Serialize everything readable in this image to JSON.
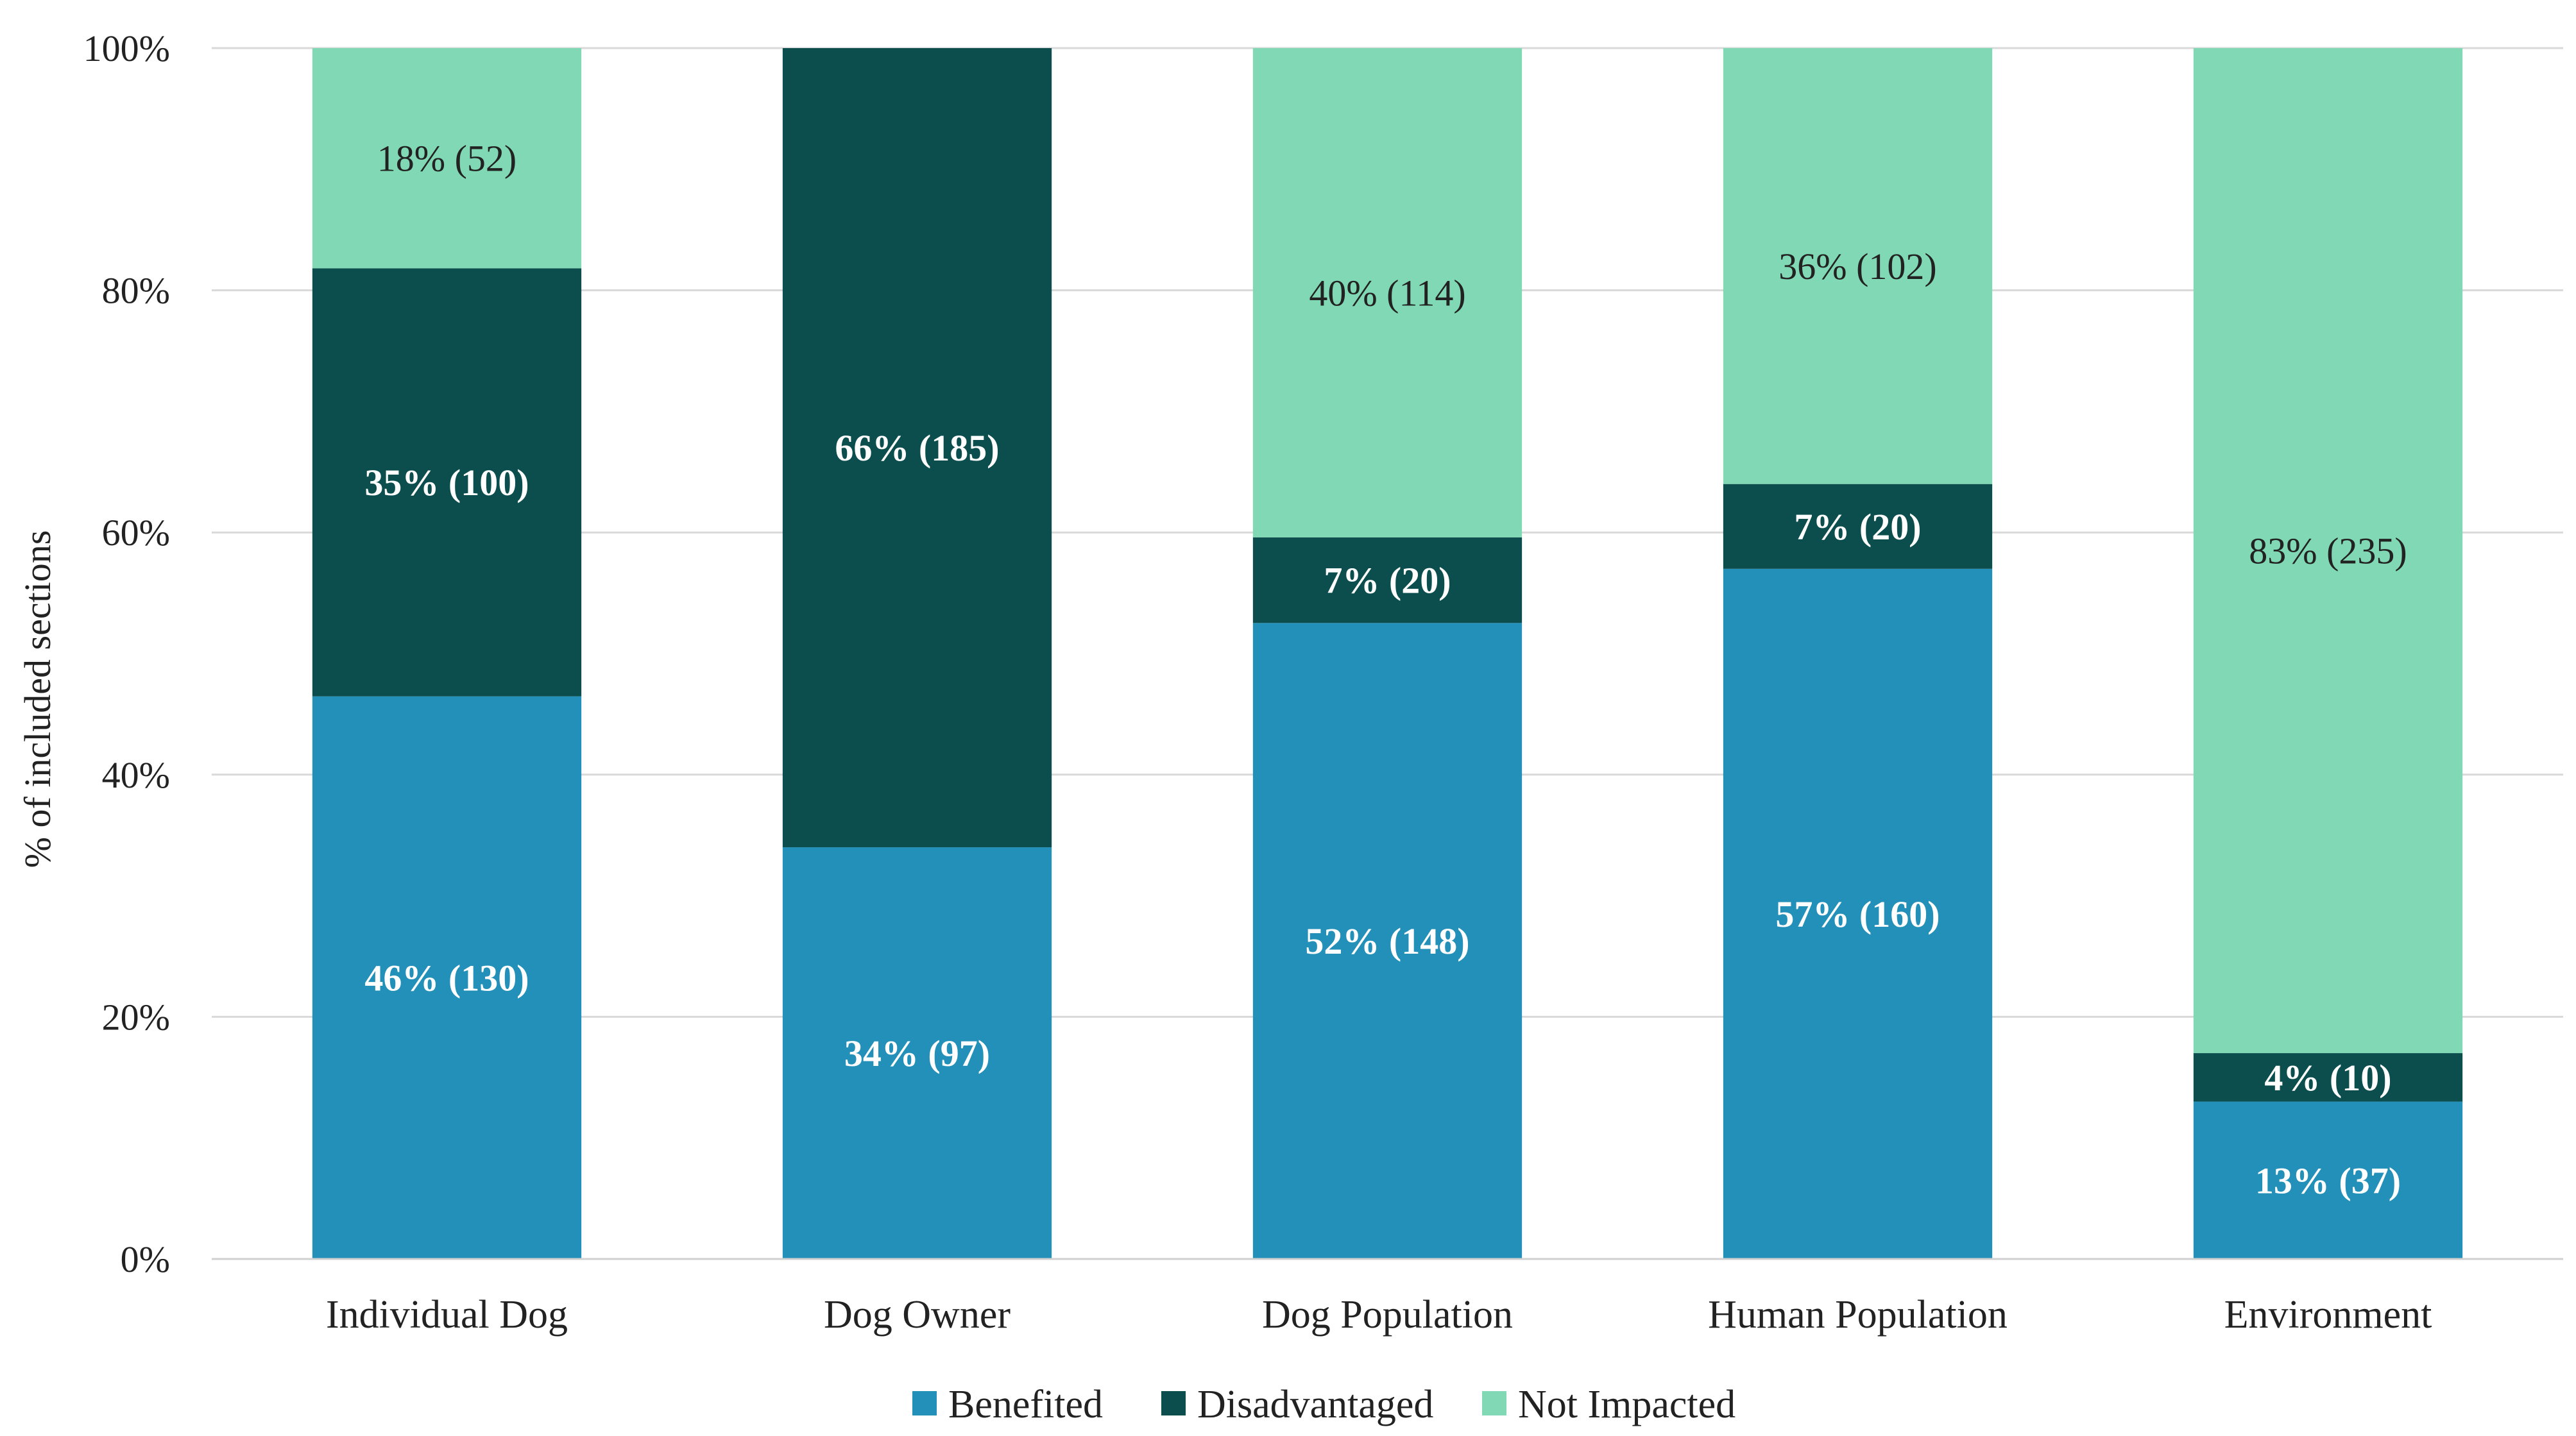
{
  "chart_data": {
    "type": "bar",
    "stacked": true,
    "title": "",
    "xlabel": "",
    "ylabel": "% of included sections",
    "ylim": [
      0,
      100
    ],
    "yticks": [
      "0%",
      "20%",
      "40%",
      "60%",
      "80%",
      "100%"
    ],
    "grid": true,
    "legend_position": "bottom",
    "categories": [
      "Individual Dog",
      "Dog Owner",
      "Dog Population",
      "Human Population",
      "Environment"
    ],
    "series": [
      {
        "name": "Benefited",
        "color": "#2290b8",
        "label_color": "#ffffff",
        "values": [
          46,
          34,
          52,
          57,
          13
        ],
        "labels": [
          "46% (130)",
          "34% (97)",
          "52% (148)",
          "57% (160)",
          "13% (37)"
        ]
      },
      {
        "name": "Disadvantaged",
        "color": "#0b4e4d",
        "label_color": "#ffffff",
        "values": [
          35,
          66,
          7,
          7,
          4
        ],
        "labels": [
          "35% (100)",
          "66% (185)",
          "7% (20)",
          "7% (20)",
          "4% (10)"
        ]
      },
      {
        "name": "Not Impacted",
        "color": "#80d8b4",
        "label_color": "#222222",
        "values": [
          18,
          0,
          40,
          36,
          83
        ],
        "labels": [
          "18% (52)",
          "",
          "40% (114)",
          "36% (102)",
          "83% (235)"
        ]
      }
    ]
  }
}
